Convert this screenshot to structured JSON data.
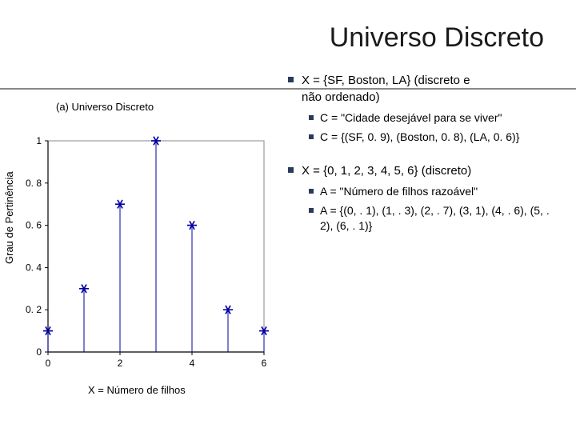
{
  "title": "Universo Discreto",
  "caption": "(a) Universo Discreto",
  "x_axis_caption": "X = Número de filhos",
  "y_label": "Grau de Pertinência",
  "chart": {
    "type": "stem",
    "x_values": [
      0,
      1,
      2,
      3,
      4,
      5,
      6
    ],
    "y_values": [
      0.1,
      0.3,
      0.7,
      1.0,
      0.6,
      0.2,
      0.1
    ],
    "xlim": [
      0,
      6
    ],
    "ylim": [
      0,
      1
    ],
    "x_ticks": [
      0,
      2,
      4,
      6
    ],
    "y_ticks": [
      0,
      0.2,
      0.4,
      0.6,
      0.8,
      1
    ],
    "y_tick_labels": [
      "0",
      "0. 2",
      "0. 4",
      "0. 6",
      "0. 8",
      "1"
    ],
    "marker_color": "#0000a0",
    "stem_color": "#0000a0",
    "axis_color": "#000000",
    "frame_color": "#888888",
    "marker_style": "star",
    "marker_size": 6,
    "stem_width": 1
  },
  "bullets": {
    "sf_title": "X = {SF, Boston, LA} (discreto e",
    "sf_sub": "não ordenado)",
    "sf_c": "C = \"Cidade desejável para se viver\"",
    "sf_set": "C = {(SF, 0. 9), (Boston, 0. 8), (LA, 0. 6)}",
    "x_title": "X = {0, 1, 2, 3, 4, 5, 6} (discreto)",
    "a_def": "A = \"Número de filhos razoável\"",
    "a_set": "A = {(0, . 1), (1, . 3), (2, . 7), (3, 1), (4, . 6), (5, . 2), (6, . 1)}"
  }
}
